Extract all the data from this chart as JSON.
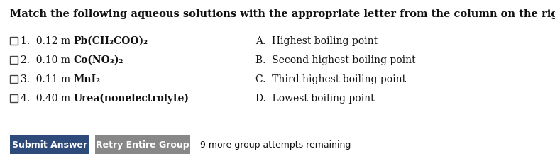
{
  "title": "Match the following aqueous solutions with the appropriate letter from the column on the right.",
  "rows": [
    {
      "prefix": "1.  0.12 m ",
      "formula": "Pb(CH₃COO)₂"
    },
    {
      "prefix": "2.  0.10 m ",
      "formula": "Co(NO₃)₂"
    },
    {
      "prefix": "3.  0.11 m ",
      "formula": "MnI₂"
    },
    {
      "prefix": "4.  0.40 m ",
      "formula": "Urea(nonelectrolyte)"
    }
  ],
  "options": [
    "A.  Highest boiling point",
    "B.  Second highest boiling point",
    "C.  Third highest boiling point",
    "D.  Lowest boiling point"
  ],
  "btn1_text": "Submit Answer",
  "btn1_color": "#2e4a7a",
  "btn2_text": "Retry Entire Group",
  "btn2_color": "#888888",
  "remaining_text": "9 more group attempts remaining",
  "bg_color": "#ffffff",
  "text_color": "#111111",
  "title_fontsize": 10.5,
  "body_fontsize": 10.0,
  "btn_fontsize": 9.0,
  "option_fontsize": 10.0
}
